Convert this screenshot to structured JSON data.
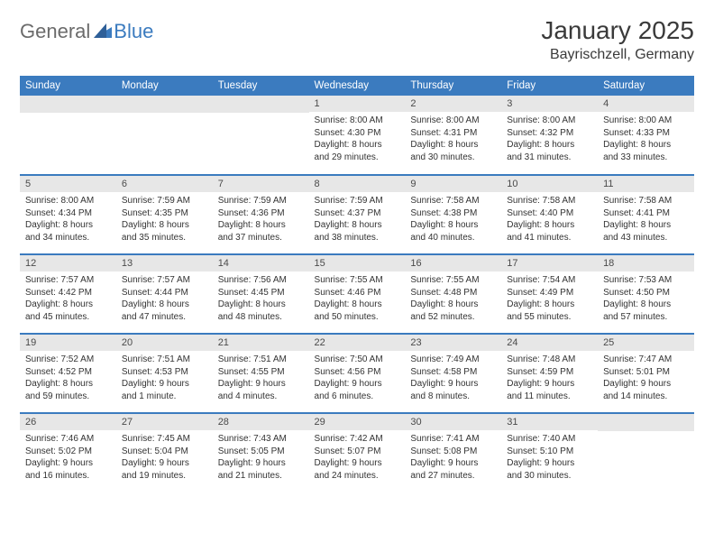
{
  "brand": {
    "text_general": "General",
    "text_blue": "Blue",
    "mark_color": "#3b7bbf"
  },
  "header": {
    "month_title": "January 2025",
    "location": "Bayrischzell, Germany"
  },
  "styling": {
    "header_bg": "#3b7bbf",
    "header_text": "#ffffff",
    "daynum_bg": "#e7e7e7",
    "row_border": "#3b7bbf",
    "body_font_size": 10,
    "daynum_font_size": 11,
    "weekday_font_size": 11.5,
    "title_font_size": 28,
    "location_font_size": 16
  },
  "weekdays": [
    "Sunday",
    "Monday",
    "Tuesday",
    "Wednesday",
    "Thursday",
    "Friday",
    "Saturday"
  ],
  "weeks": [
    [
      null,
      null,
      null,
      {
        "n": "1",
        "sr": "8:00 AM",
        "ss": "4:30 PM",
        "dl": "8 hours and 29 minutes."
      },
      {
        "n": "2",
        "sr": "8:00 AM",
        "ss": "4:31 PM",
        "dl": "8 hours and 30 minutes."
      },
      {
        "n": "3",
        "sr": "8:00 AM",
        "ss": "4:32 PM",
        "dl": "8 hours and 31 minutes."
      },
      {
        "n": "4",
        "sr": "8:00 AM",
        "ss": "4:33 PM",
        "dl": "8 hours and 33 minutes."
      }
    ],
    [
      {
        "n": "5",
        "sr": "8:00 AM",
        "ss": "4:34 PM",
        "dl": "8 hours and 34 minutes."
      },
      {
        "n": "6",
        "sr": "7:59 AM",
        "ss": "4:35 PM",
        "dl": "8 hours and 35 minutes."
      },
      {
        "n": "7",
        "sr": "7:59 AM",
        "ss": "4:36 PM",
        "dl": "8 hours and 37 minutes."
      },
      {
        "n": "8",
        "sr": "7:59 AM",
        "ss": "4:37 PM",
        "dl": "8 hours and 38 minutes."
      },
      {
        "n": "9",
        "sr": "7:58 AM",
        "ss": "4:38 PM",
        "dl": "8 hours and 40 minutes."
      },
      {
        "n": "10",
        "sr": "7:58 AM",
        "ss": "4:40 PM",
        "dl": "8 hours and 41 minutes."
      },
      {
        "n": "11",
        "sr": "7:58 AM",
        "ss": "4:41 PM",
        "dl": "8 hours and 43 minutes."
      }
    ],
    [
      {
        "n": "12",
        "sr": "7:57 AM",
        "ss": "4:42 PM",
        "dl": "8 hours and 45 minutes."
      },
      {
        "n": "13",
        "sr": "7:57 AM",
        "ss": "4:44 PM",
        "dl": "8 hours and 47 minutes."
      },
      {
        "n": "14",
        "sr": "7:56 AM",
        "ss": "4:45 PM",
        "dl": "8 hours and 48 minutes."
      },
      {
        "n": "15",
        "sr": "7:55 AM",
        "ss": "4:46 PM",
        "dl": "8 hours and 50 minutes."
      },
      {
        "n": "16",
        "sr": "7:55 AM",
        "ss": "4:48 PM",
        "dl": "8 hours and 52 minutes."
      },
      {
        "n": "17",
        "sr": "7:54 AM",
        "ss": "4:49 PM",
        "dl": "8 hours and 55 minutes."
      },
      {
        "n": "18",
        "sr": "7:53 AM",
        "ss": "4:50 PM",
        "dl": "8 hours and 57 minutes."
      }
    ],
    [
      {
        "n": "19",
        "sr": "7:52 AM",
        "ss": "4:52 PM",
        "dl": "8 hours and 59 minutes."
      },
      {
        "n": "20",
        "sr": "7:51 AM",
        "ss": "4:53 PM",
        "dl": "9 hours and 1 minute."
      },
      {
        "n": "21",
        "sr": "7:51 AM",
        "ss": "4:55 PM",
        "dl": "9 hours and 4 minutes."
      },
      {
        "n": "22",
        "sr": "7:50 AM",
        "ss": "4:56 PM",
        "dl": "9 hours and 6 minutes."
      },
      {
        "n": "23",
        "sr": "7:49 AM",
        "ss": "4:58 PM",
        "dl": "9 hours and 8 minutes."
      },
      {
        "n": "24",
        "sr": "7:48 AM",
        "ss": "4:59 PM",
        "dl": "9 hours and 11 minutes."
      },
      {
        "n": "25",
        "sr": "7:47 AM",
        "ss": "5:01 PM",
        "dl": "9 hours and 14 minutes."
      }
    ],
    [
      {
        "n": "26",
        "sr": "7:46 AM",
        "ss": "5:02 PM",
        "dl": "9 hours and 16 minutes."
      },
      {
        "n": "27",
        "sr": "7:45 AM",
        "ss": "5:04 PM",
        "dl": "9 hours and 19 minutes."
      },
      {
        "n": "28",
        "sr": "7:43 AM",
        "ss": "5:05 PM",
        "dl": "9 hours and 21 minutes."
      },
      {
        "n": "29",
        "sr": "7:42 AM",
        "ss": "5:07 PM",
        "dl": "9 hours and 24 minutes."
      },
      {
        "n": "30",
        "sr": "7:41 AM",
        "ss": "5:08 PM",
        "dl": "9 hours and 27 minutes."
      },
      {
        "n": "31",
        "sr": "7:40 AM",
        "ss": "5:10 PM",
        "dl": "9 hours and 30 minutes."
      },
      null
    ]
  ],
  "labels": {
    "sunrise": "Sunrise:",
    "sunset": "Sunset:",
    "daylight": "Daylight:"
  }
}
